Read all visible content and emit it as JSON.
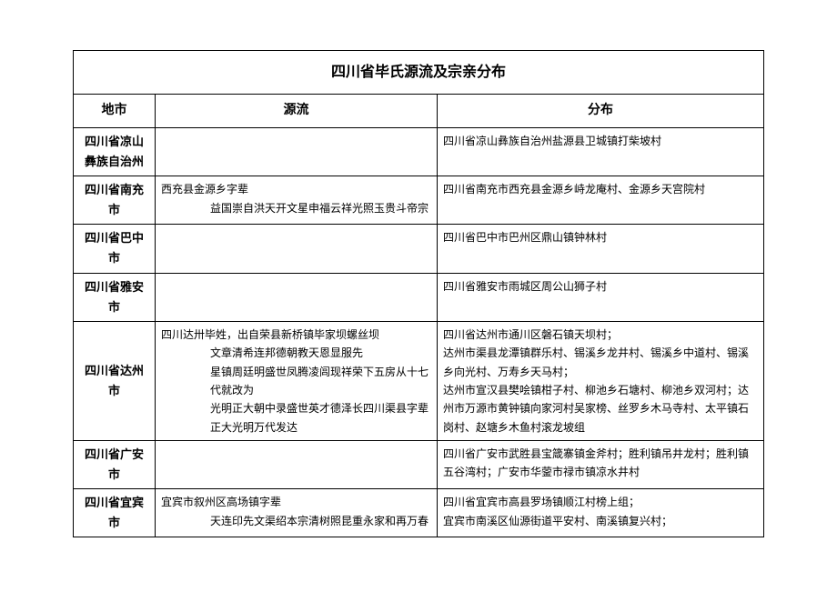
{
  "title": "四川省毕氏源流及宗亲分布",
  "headers": {
    "city": "地市",
    "origin": "源流",
    "dist": "分布"
  },
  "rows": [
    {
      "city": "四川省凉山彝族自治州",
      "origin": "",
      "dist": "四川省凉山彝族自治州盐源县卫城镇打柴坡村"
    },
    {
      "city": "四川省南充市",
      "origin": {
        "lead": "西充县金源乡字辈",
        "indent": [
          "益国崇自洪天开文星申福云祥光照玉贵斗帝宗"
        ]
      },
      "dist": "四川省南充市西充县金源乡峙龙庵村、金源乡天宫院村"
    },
    {
      "city": "四川省巴中市",
      "origin": "",
      "dist": "四川省巴中市巴州区鼎山镇钟林村"
    },
    {
      "city": "四川省雅安市",
      "origin": "",
      "dist": "四川省雅安市雨城区周公山狮子村"
    },
    {
      "city": "四川省达州市",
      "origin": {
        "lead": "四川达卅毕姓，出自荣县新桥镇毕家坝螺丝坝",
        "indent": [
          "文章清希连邦德朝教天恩显服先",
          "星镇周廷明盛世凤腾凌闾现祥荣下五房从十七代就改为",
          "光明正大朝中录盛世英才德泽长四川渠县字辈",
          "正大光明万代发达"
        ]
      },
      "dist": "四川省达州市通川区磐石镇天坝村；\n达州市渠县龙潭镇群乐村、锡溪乡龙井村、锡溪乡中道村、锡溪乡向光村、万寿乡天马村；\n达州市宣汉县樊哙镇柑子村、柳池乡石塘村、柳池乡双河村；达州市万源市黄钟镇向家河村吴家榜、丝罗乡木马寺村、太平镇石岗村、赵塘乡木鱼村滚龙坡组"
    },
    {
      "city": "四川省广安市",
      "origin": "",
      "dist": "四川省广安市武胜县宝箴寨镇金斧村；胜利镇吊井龙村；胜利镇五谷湾村；广安市华蓥市禄市镇凉水井村"
    },
    {
      "city": "四川省宜宾市",
      "origin": {
        "lead": "宜宾市叙州区高场镇字辈",
        "indent": [
          "天连印先文渠绍本宗清树照昆重永家和再万春"
        ]
      },
      "dist": "四川省宜宾市高县罗场镇顺江村榜上组；\n宜宾市南溪区仙源街道平安村、南溪镇复兴村；"
    }
  ]
}
